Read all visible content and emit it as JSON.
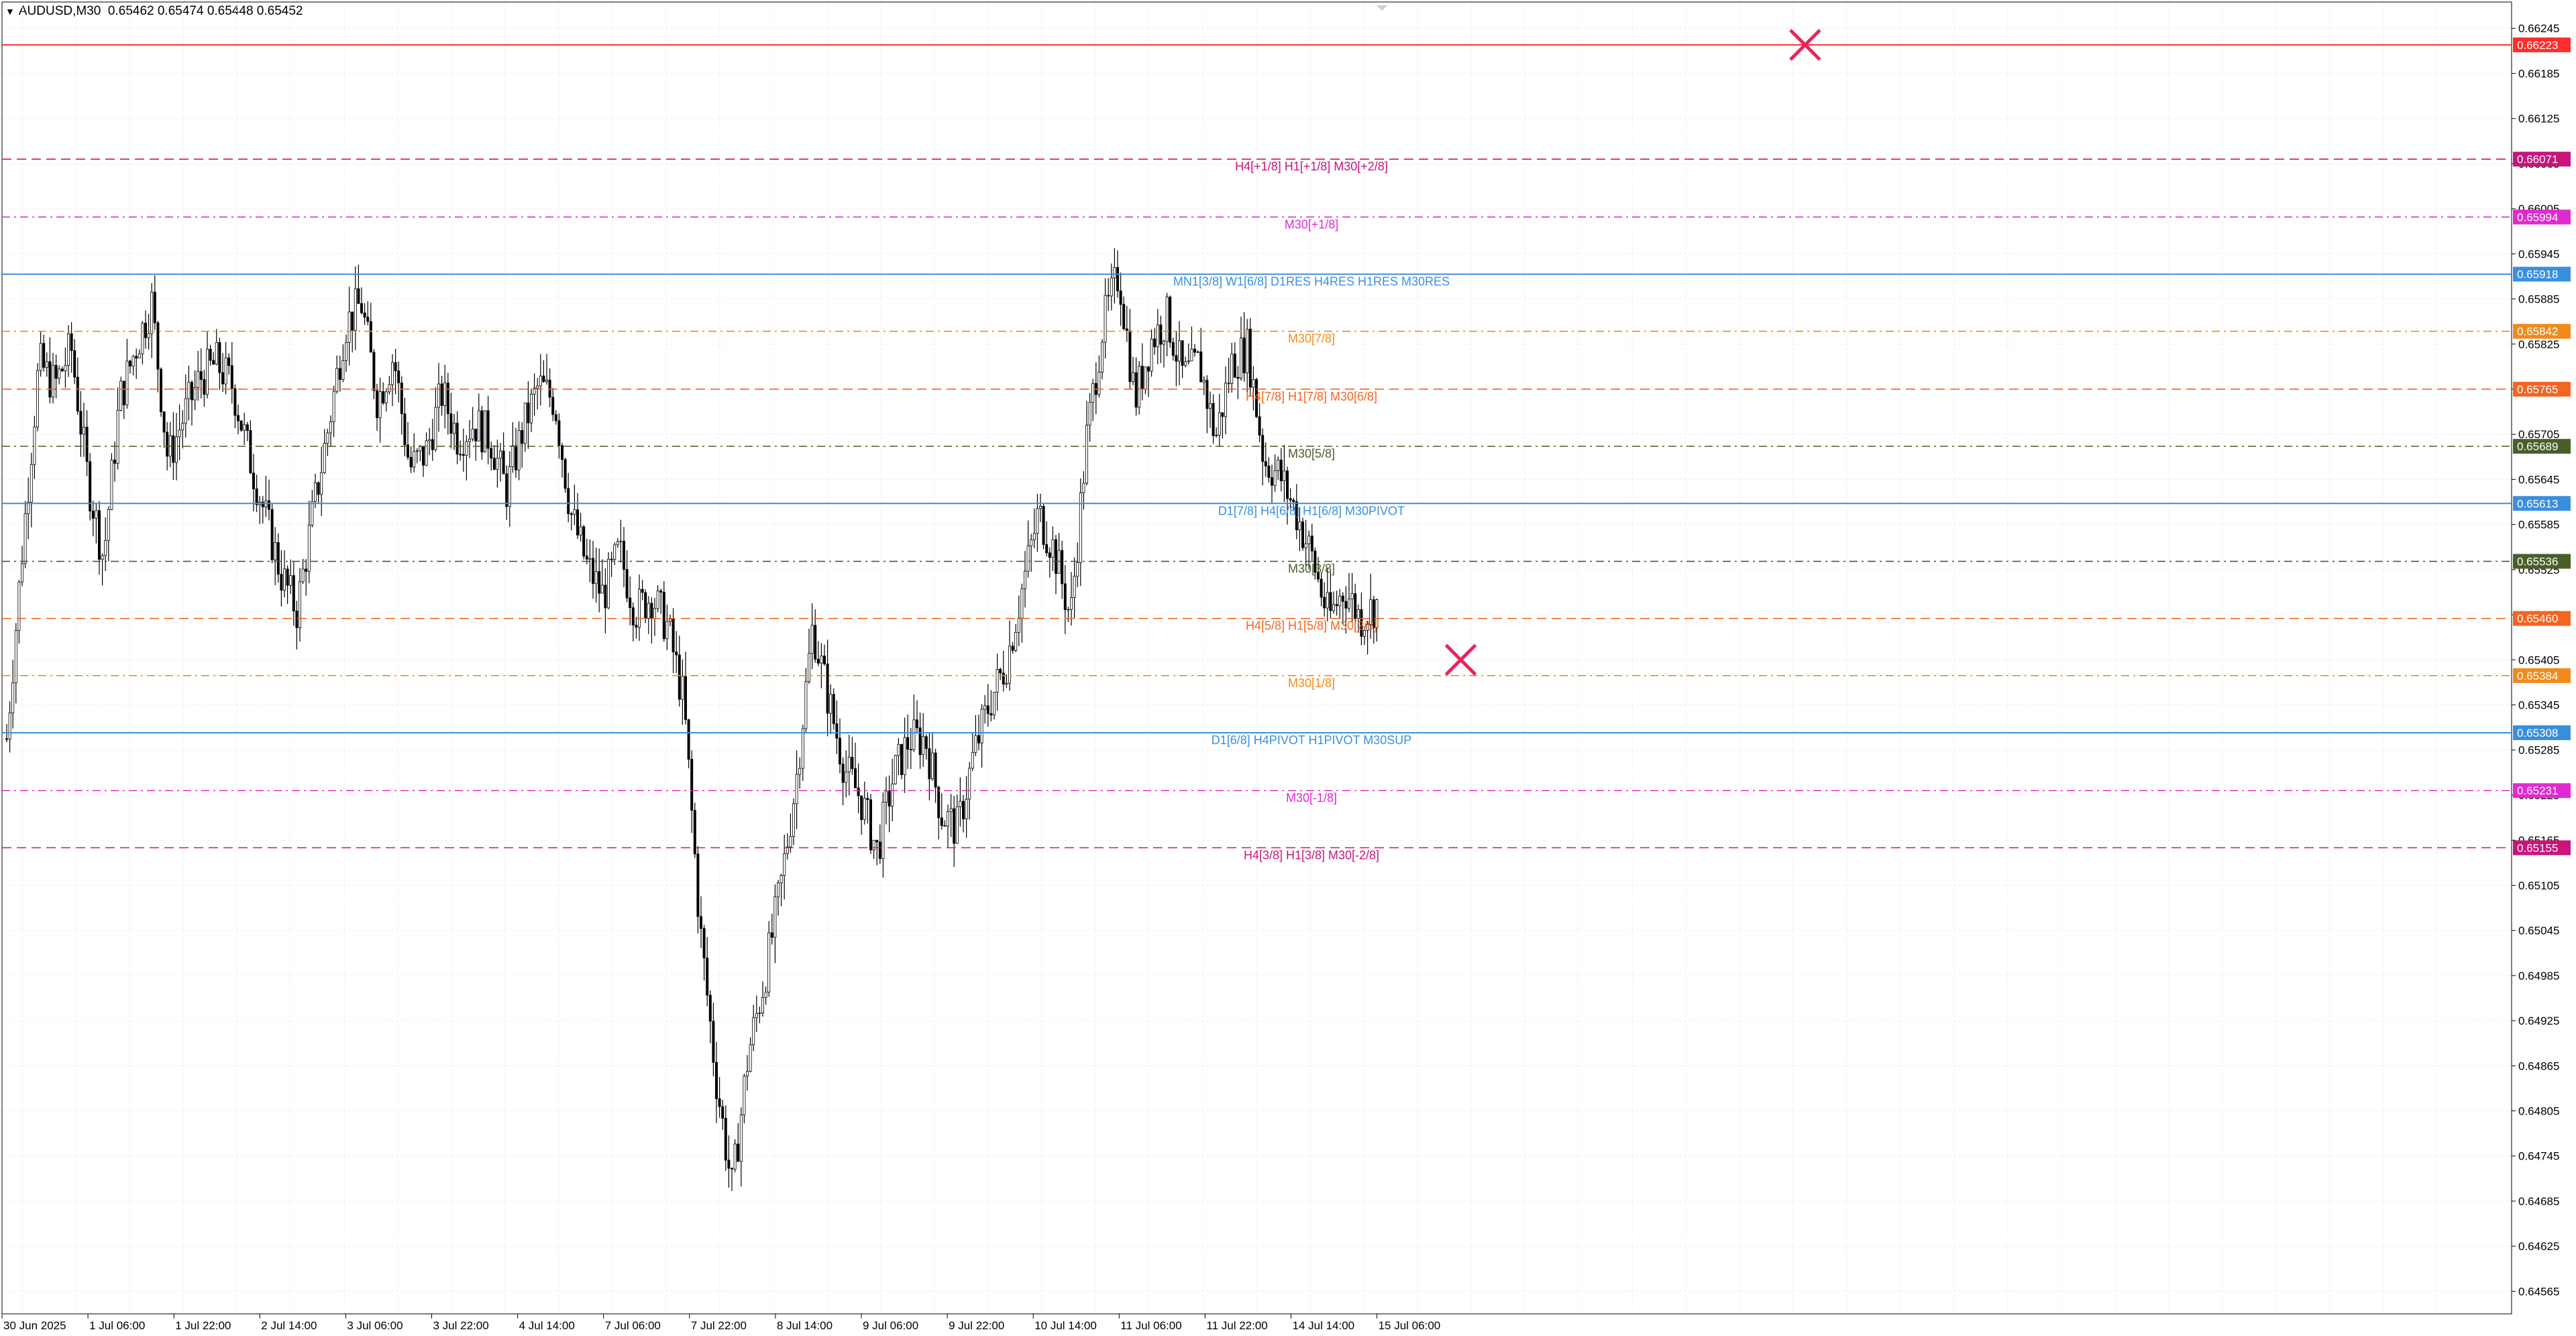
{
  "header": {
    "symbol": "AUDUSD,M30",
    "ohlc": "0.65462 0.65474 0.65448 0.65452"
  },
  "chart_data": {
    "type": "candlestick",
    "symbol": "AUDUSD",
    "timeframe": "M30",
    "ylim": [
      0.64535,
      0.6628
    ],
    "grid": true,
    "y_ticks": [
      "0.66245",
      "0.66185",
      "0.66125",
      "0.66065",
      "0.66005",
      "0.65945",
      "0.65885",
      "0.65825",
      "0.65765",
      "0.65705",
      "0.65645",
      "0.65585",
      "0.65525",
      "0.65465",
      "0.65405",
      "0.65345",
      "0.65285",
      "0.65225",
      "0.65165",
      "0.65105",
      "0.65045",
      "0.64985",
      "0.64925",
      "0.64865",
      "0.64805",
      "0.64745",
      "0.64685",
      "0.64625",
      "0.64565"
    ],
    "x_ticks": [
      "30 Jun 2025",
      "1 Jul 06:00",
      "1 Jul 22:00",
      "2 Jul 14:00",
      "3 Jul 06:00",
      "3 Jul 22:00",
      "4 Jul 14:00",
      "7 Jul 06:00",
      "7 Jul 22:00",
      "8 Jul 14:00",
      "9 Jul 06:00",
      "9 Jul 22:00",
      "10 Jul 14:00",
      "11 Jul 06:00",
      "11 Jul 22:00",
      "14 Jul 14:00",
      "15 Jul 06:00"
    ],
    "price_path": [
      0.653,
      0.6556,
      0.658,
      0.6577,
      0.6582,
      0.6565,
      0.6554,
      0.6575,
      0.6582,
      0.6588,
      0.6567,
      0.6573,
      0.6578,
      0.658,
      0.6577,
      0.6568,
      0.656,
      0.6552,
      0.6547,
      0.656,
      0.6572,
      0.6585,
      0.6588,
      0.6575,
      0.6581,
      0.6566,
      0.6568,
      0.6576,
      0.657,
      0.6572,
      0.657,
      0.6563,
      0.6571,
      0.6577,
      0.6575,
      0.656,
      0.6553,
      0.6549,
      0.6555,
      0.6547,
      0.6549,
      0.6545,
      0.6535,
      0.6505,
      0.6485,
      0.647,
      0.6488,
      0.6498,
      0.651,
      0.6525,
      0.6545,
      0.6535,
      0.6526,
      0.6522,
      0.6515,
      0.6525,
      0.653,
      0.653,
      0.652,
      0.6518,
      0.6528,
      0.6535,
      0.654,
      0.655,
      0.656,
      0.6555,
      0.6546,
      0.657,
      0.6585,
      0.6592,
      0.6575,
      0.6583,
      0.6586,
      0.6578,
      0.658,
      0.657,
      0.658,
      0.6582,
      0.6567,
      0.6565,
      0.656,
      0.6554,
      0.6546,
      0.655,
      0.6546,
      0.6548
    ],
    "levels": [
      {
        "price": 0.66223,
        "label": "",
        "tag": "0.66223",
        "color": "#ff2d2d",
        "style": "solid"
      },
      {
        "price": 0.66071,
        "label": "H4[+1/8] H1[+1/8] M30[+2/8]",
        "tag": "0.66071",
        "color": "#c8157a",
        "style": "dash"
      },
      {
        "price": 0.65994,
        "label": "M30[+1/8]",
        "tag": "0.65994",
        "color": "#e02ad0",
        "style": "dashdot"
      },
      {
        "price": 0.65918,
        "label": "MN1[3/8] W1[6/8] D1RES H4RES H1RES M30RES",
        "tag": "0.65918",
        "color": "#3a8fdc",
        "style": "solid"
      },
      {
        "price": 0.65842,
        "label": "M30[7/8]",
        "tag": "0.65842",
        "color": "#f08a1c",
        "style": "dashdot"
      },
      {
        "price": 0.65765,
        "label": "H4[7/8] H1[7/8] M30[6/8]",
        "tag": "0.65765",
        "color": "#f26522",
        "style": "dash"
      },
      {
        "price": 0.65689,
        "label": "M30[5/8]",
        "tag": "0.65689",
        "color": "#4a5e2a",
        "style": "dashdot"
      },
      {
        "price": 0.65613,
        "label": "D1[7/8] H4[6/8] H1[6/8] M30PIVOT",
        "tag": "0.65613",
        "color": "#3a8fdc",
        "style": "solid"
      },
      {
        "price": 0.65536,
        "label": "M30[3/8]",
        "tag": "0.65536",
        "color": "#4a5e2a",
        "style": "dashdot"
      },
      {
        "price": 0.6546,
        "label": "H4[5/8] H1[5/8] M30[2/8]",
        "tag": "0.65460",
        "color": "#f26522",
        "style": "dash"
      },
      {
        "price": 0.65384,
        "label": "M30[1/8]",
        "tag": "0.65384",
        "color": "#f08a1c",
        "style": "dashdot"
      },
      {
        "price": 0.65308,
        "label": "D1[6/8] H4PIVOT H1PIVOT M30SUP",
        "tag": "0.65308",
        "color": "#3a8fdc",
        "style": "solid"
      },
      {
        "price": 0.65231,
        "label": "M30[-1/8]",
        "tag": "0.65231",
        "color": "#e02ad0",
        "style": "dashdot"
      },
      {
        "price": 0.65155,
        "label": "H4[3/8] H1[3/8] M30[-2/8]",
        "tag": "0.65155",
        "color": "#c8157a",
        "style": "dash"
      }
    ],
    "markers": [
      {
        "type": "cross",
        "price": 0.66223,
        "bar_index": 94,
        "color": "#e8255a"
      },
      {
        "type": "cross",
        "price": 0.65405,
        "bar_index": 76,
        "color": "#e8255a"
      }
    ]
  }
}
